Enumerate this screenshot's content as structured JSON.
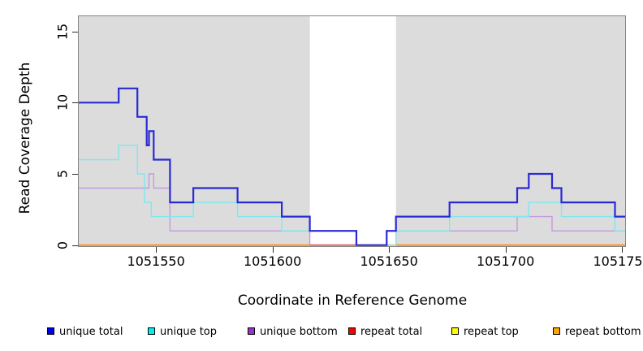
{
  "figure": {
    "x_axis_title": "Coordinate in Reference Genome",
    "y_axis_title": "Read Coverage Depth"
  },
  "chart_data": {
    "type": "line",
    "subtype": "step",
    "title": "",
    "xlabel": "Coordinate in Reference Genome",
    "ylabel": "Read Coverage Depth",
    "xlim": [
      1051516.5,
      1051751.7
    ],
    "ylim": [
      0,
      16.1
    ],
    "x_ticks": [
      1051550,
      1051600,
      1051650,
      1051700,
      1051750
    ],
    "y_ticks": [
      0,
      5,
      10,
      15
    ],
    "grid": false,
    "legend_position": "bottom",
    "panel_background": "#dcdcdc",
    "panel_border_color": "#848484",
    "masked_region": {
      "x_start": 1051616,
      "x_end": 1051653,
      "color": "#ffffff"
    },
    "series": [
      {
        "name": "unique total",
        "legend_color": "#0000ee",
        "line_color": "#2a2ad4",
        "line_width": 2.2,
        "x_end": 1051751.7,
        "steps": [
          [
            1051516.5,
            10
          ],
          [
            1051534,
            11
          ],
          [
            1051542,
            9
          ],
          [
            1051546,
            7
          ],
          [
            1051547,
            8
          ],
          [
            1051549,
            6
          ],
          [
            1051556,
            3
          ],
          [
            1051566,
            4
          ],
          [
            1051585,
            3
          ],
          [
            1051604,
            2
          ],
          [
            1051616,
            1
          ],
          [
            1051636,
            0
          ],
          [
            1051649,
            1
          ],
          [
            1051653,
            2
          ],
          [
            1051676,
            3
          ],
          [
            1051705,
            4
          ],
          [
            1051710,
            5
          ],
          [
            1051720,
            4
          ],
          [
            1051724,
            3
          ],
          [
            1051747,
            2
          ]
        ]
      },
      {
        "name": "unique top",
        "legend_color": "#00eeee",
        "line_color": "#7de8ee",
        "line_width": 1.4,
        "x_end": 1051751.7,
        "steps": [
          [
            1051516.5,
            6
          ],
          [
            1051534,
            7
          ],
          [
            1051542,
            5
          ],
          [
            1051545,
            3
          ],
          [
            1051548,
            2
          ],
          [
            1051566,
            3
          ],
          [
            1051585,
            2
          ],
          [
            1051604,
            1
          ],
          [
            1051636,
            0
          ],
          [
            1051653,
            1
          ],
          [
            1051676,
            2
          ],
          [
            1051710,
            3
          ],
          [
            1051724,
            2
          ],
          [
            1051747,
            1
          ]
        ]
      },
      {
        "name": "unique bottom",
        "legend_color": "#9932cc",
        "line_color": "#c49ade",
        "line_width": 1.4,
        "x_end": 1051751.7,
        "steps": [
          [
            1051516.5,
            4
          ],
          [
            1051547,
            5
          ],
          [
            1051549,
            4
          ],
          [
            1051556,
            1
          ],
          [
            1051616,
            0
          ],
          [
            1051649,
            1
          ],
          [
            1051705,
            2
          ],
          [
            1051720,
            1
          ]
        ]
      },
      {
        "name": "repeat total",
        "legend_color": "#ff0000",
        "line_color": "#bf4050",
        "line_width": 1.2,
        "x_end": 1051653,
        "steps": [
          [
            1051616,
            0
          ]
        ]
      },
      {
        "name": "repeat top",
        "legend_color": "#ffff00",
        "line_color": "#f4e34a",
        "line_width": 1.2,
        "x_end": 1051653,
        "steps": [
          [
            1051616,
            0
          ]
        ]
      },
      {
        "name": "repeat bottom",
        "legend_color": "#ffa500",
        "line_color": "#ff8c1a",
        "line_width": 1.8,
        "x_end": 1051751.7,
        "steps": [
          [
            1051516.5,
            0
          ]
        ]
      }
    ]
  }
}
